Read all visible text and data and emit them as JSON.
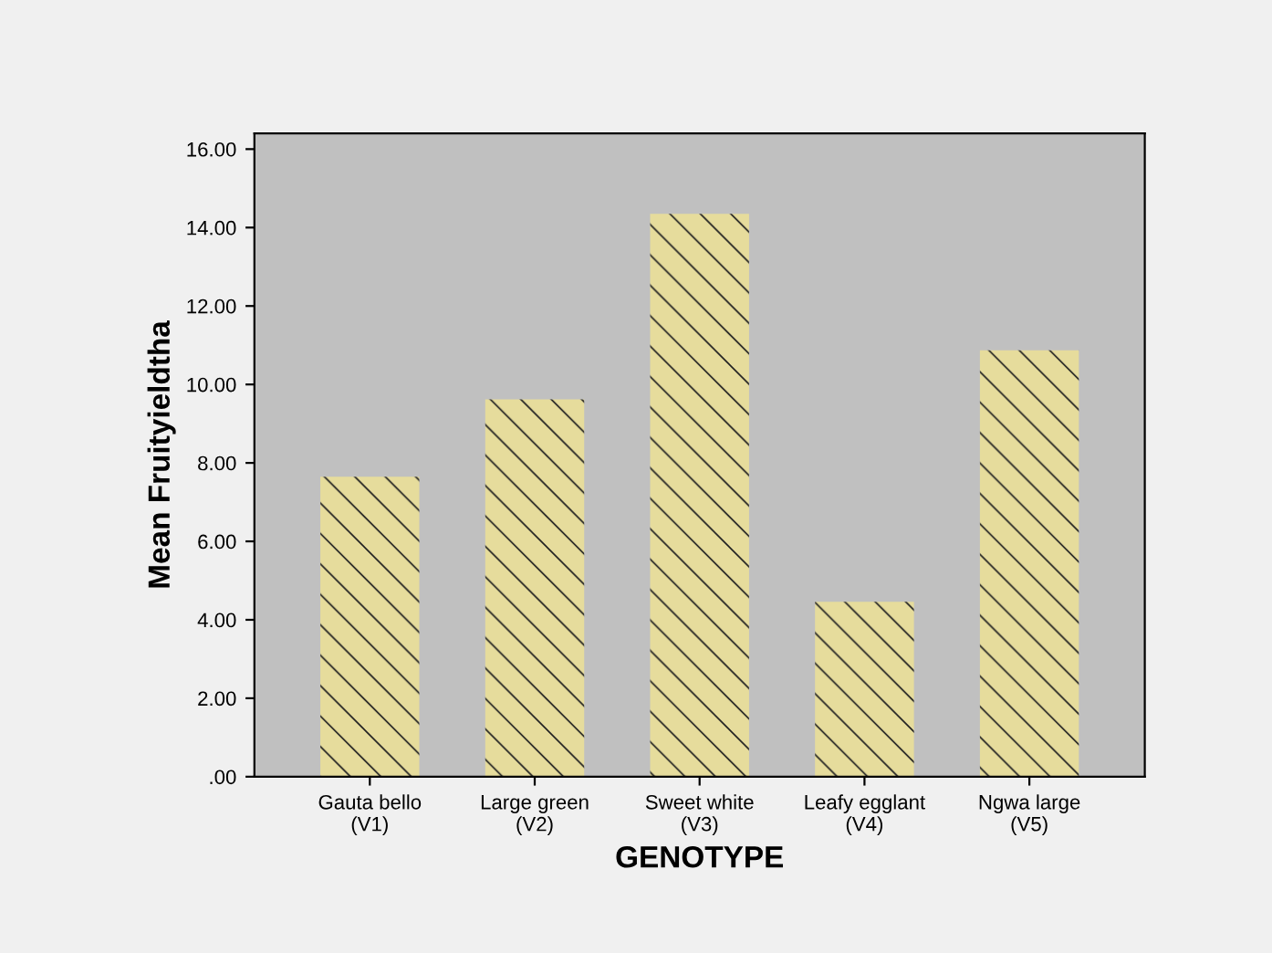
{
  "chart_data": {
    "type": "bar",
    "xlabel": "GENOTYPE",
    "ylabel": "Mean Fruityieldtha",
    "categories": [
      "Gauta bello\n(V1)",
      "Large green\n(V2)",
      "Sweet white\n(V3)",
      "Leafy egglant\n(V4)",
      "Ngwa large\n(V5)"
    ],
    "values": [
      7.65,
      9.62,
      14.35,
      4.46,
      10.87
    ],
    "color": "#e6dc9c",
    "ylim": [
      0,
      16.4
    ],
    "yticks": [
      {
        "value": 0,
        "label": ".00"
      },
      {
        "value": 2,
        "label": "2.00"
      },
      {
        "value": 4,
        "label": "4.00"
      },
      {
        "value": 6,
        "label": "6.00"
      },
      {
        "value": 8,
        "label": "8.00"
      },
      {
        "value": 10,
        "label": "10.00"
      },
      {
        "value": 12,
        "label": "12.00"
      },
      {
        "value": 14,
        "label": "14.00"
      },
      {
        "value": 16,
        "label": "16.00"
      }
    ],
    "grid": false
  }
}
